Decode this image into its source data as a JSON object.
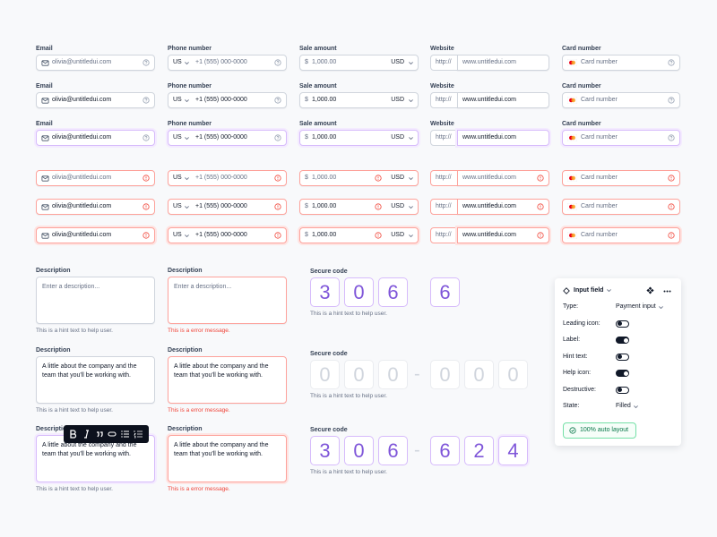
{
  "input_fields": {
    "labels": [
      "Email",
      "Phone number",
      "Sale amount",
      "Website",
      "Card number"
    ],
    "email": "olivia@untitledui.com",
    "phone_country": "US",
    "phone": "+1 (555) 000-0000",
    "currency_symbol": "$",
    "amount": "1,000.00",
    "currency": "USD",
    "url_prefix": "http://",
    "url": "www.untitledui.com",
    "card": "Card number"
  },
  "textareas": {
    "label": "Description",
    "placeholder": "Enter a description...",
    "text": "A little about the company and the team that you'll be working with.",
    "hint": "This is a hint text to help user.",
    "error": "This is a error message."
  },
  "secure_code": {
    "label": "Secure code",
    "hint": "This is a hint text to help user.",
    "separator": "-",
    "rows": [
      [
        3,
        0,
        6,
        6
      ],
      [
        0,
        0,
        0,
        0,
        0,
        0
      ],
      [
        3,
        0,
        6,
        6,
        2,
        4
      ]
    ]
  },
  "panel": {
    "title": "Input field",
    "properties": [
      {
        "label": "Type:",
        "value": "Payment input"
      },
      {
        "label": "Leading icon:",
        "toggle": false
      },
      {
        "label": "Label:",
        "toggle": true
      },
      {
        "label": "Hint text:",
        "toggle": false
      },
      {
        "label": "Help icon:",
        "toggle": true
      },
      {
        "label": "Destructive:",
        "toggle": false
      },
      {
        "label": "State:",
        "value": "Filled"
      }
    ],
    "button": "100% auto layout"
  }
}
